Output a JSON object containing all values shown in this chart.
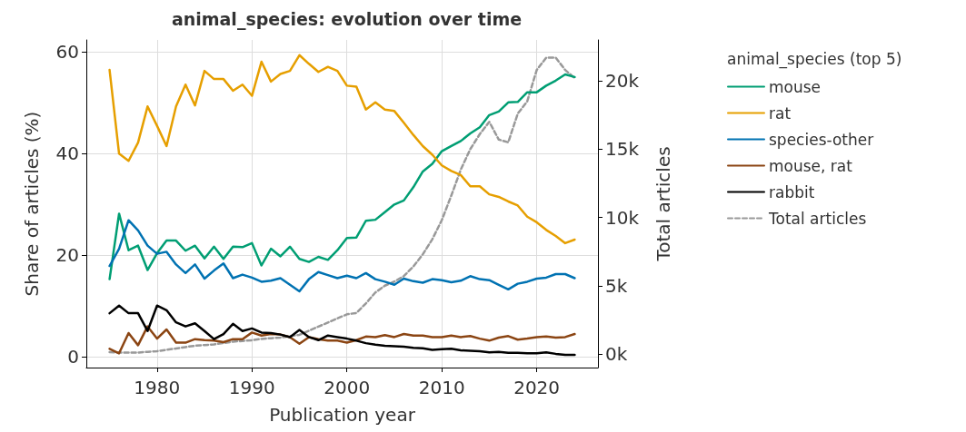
{
  "chart_data": {
    "type": "line",
    "title": "animal_species: evolution over time",
    "xlabel": "Publication year",
    "ylabel": "Share of articles (%)",
    "y2label": "Total articles",
    "legend_title": "animal_species (top 5)",
    "x": [
      1975,
      1976,
      1977,
      1978,
      1979,
      1980,
      1981,
      1982,
      1983,
      1984,
      1985,
      1986,
      1987,
      1988,
      1989,
      1990,
      1991,
      1992,
      1993,
      1994,
      1995,
      1996,
      1997,
      1998,
      1999,
      2000,
      2001,
      2002,
      2003,
      2004,
      2005,
      2006,
      2007,
      2008,
      2009,
      2010,
      2011,
      2012,
      2013,
      2014,
      2015,
      2016,
      2017,
      2018,
      2019,
      2020,
      2021,
      2022,
      2023,
      2024
    ],
    "series": [
      {
        "name": "mouse",
        "color": "#009e73",
        "values": [
          15.3,
          28.2,
          21.0,
          21.9,
          17.1,
          20.4,
          22.9,
          22.9,
          20.9,
          21.9,
          19.4,
          21.7,
          19.3,
          21.7,
          21.6,
          22.4,
          18.0,
          21.3,
          19.8,
          21.7,
          19.3,
          18.7,
          19.7,
          19.1,
          21.0,
          23.4,
          23.5,
          26.8,
          27.0,
          28.5,
          30.0,
          30.8,
          33.4,
          36.5,
          38.0,
          40.5,
          41.5,
          42.5,
          44.0,
          45.2,
          47.6,
          48.3,
          50.1,
          50.2,
          52.1,
          52.1,
          53.4,
          54.4,
          55.6,
          55.1
        ]
      },
      {
        "name": "rat",
        "color": "#e69f00",
        "values": [
          56.5,
          40.0,
          38.6,
          42.2,
          49.3,
          45.5,
          41.5,
          49.3,
          53.6,
          49.5,
          56.3,
          54.7,
          54.7,
          52.4,
          53.6,
          51.4,
          58.1,
          54.2,
          55.7,
          56.3,
          59.4,
          57.7,
          56.1,
          57.1,
          56.3,
          53.4,
          53.2,
          48.7,
          50.1,
          48.7,
          48.4,
          46.1,
          43.7,
          41.5,
          39.8,
          37.7,
          36.6,
          35.8,
          33.6,
          33.6,
          32.0,
          31.5,
          30.6,
          29.8,
          27.6,
          26.5,
          25.0,
          23.8,
          22.4,
          23.1
        ]
      },
      {
        "name": "species-other",
        "color": "#0072b2",
        "values": [
          17.9,
          21.3,
          26.9,
          24.9,
          21.9,
          20.3,
          20.7,
          18.2,
          16.5,
          18.2,
          15.4,
          17.0,
          18.4,
          15.5,
          16.2,
          15.6,
          14.8,
          15.0,
          15.5,
          14.2,
          12.9,
          15.3,
          16.7,
          16.1,
          15.5,
          16.0,
          15.5,
          16.5,
          15.3,
          14.8,
          14.2,
          15.4,
          14.9,
          14.6,
          15.3,
          15.1,
          14.7,
          15.0,
          15.9,
          15.3,
          15.1,
          14.2,
          13.3,
          14.4,
          14.8,
          15.4,
          15.6,
          16.3,
          16.3,
          15.5
        ]
      },
      {
        "name": "mouse, rat",
        "color": "#8b4513",
        "values": [
          1.6,
          0.7,
          4.7,
          2.3,
          6.0,
          3.6,
          5.4,
          2.8,
          2.8,
          3.5,
          3.3,
          3.2,
          2.9,
          3.5,
          3.5,
          4.8,
          4.2,
          4.5,
          4.4,
          3.9,
          2.6,
          3.9,
          3.5,
          3.2,
          3.2,
          2.8,
          3.3,
          4.0,
          3.9,
          4.3,
          3.9,
          4.5,
          4.2,
          4.2,
          3.9,
          3.9,
          4.2,
          3.9,
          4.1,
          3.6,
          3.2,
          3.8,
          4.1,
          3.4,
          3.6,
          3.9,
          4.0,
          3.8,
          3.9,
          4.5
        ]
      },
      {
        "name": "rabbit",
        "color": "#000000",
        "values": [
          8.6,
          10.1,
          8.6,
          8.6,
          5.1,
          10.1,
          9.2,
          6.8,
          6.0,
          6.6,
          5.1,
          3.5,
          4.5,
          6.5,
          5.1,
          5.6,
          4.8,
          4.7,
          4.4,
          3.9,
          5.3,
          3.9,
          3.3,
          4.2,
          3.9,
          3.6,
          3.2,
          2.7,
          2.4,
          2.2,
          2.1,
          2.0,
          1.8,
          1.7,
          1.4,
          1.5,
          1.6,
          1.3,
          1.2,
          1.1,
          0.9,
          1.0,
          0.8,
          0.8,
          0.7,
          0.7,
          0.9,
          0.6,
          0.4,
          0.4
        ]
      },
      {
        "name": "Total articles",
        "color": "#999999",
        "axis": "y2",
        "line_style": "dashed",
        "values": [
          130,
          100,
          100,
          100,
          150,
          200,
          300,
          400,
          500,
          600,
          650,
          700,
          800,
          900,
          950,
          1000,
          1100,
          1150,
          1200,
          1300,
          1400,
          1700,
          2000,
          2300,
          2600,
          2900,
          3000,
          3700,
          4500,
          5000,
          5300,
          5700,
          6400,
          7300,
          8400,
          9800,
          11600,
          13500,
          15000,
          16100,
          17000,
          15700,
          15500,
          17600,
          18500,
          20800,
          21700,
          21700,
          20800,
          20200
        ]
      }
    ],
    "xlim": [
      1972.55,
      2026.45
    ],
    "xticks": [
      1980,
      1990,
      2000,
      2010,
      2020
    ],
    "ylim": [
      -2.1,
      62.4
    ],
    "yticks": [
      0,
      20,
      40,
      60
    ],
    "y2lim": [
      -1000,
      23000
    ],
    "y2ticks": [
      {
        "value": 0,
        "label": "0k"
      },
      {
        "value": 5000,
        "label": "5k"
      },
      {
        "value": 10000,
        "label": "10k"
      },
      {
        "value": 15000,
        "label": "15k"
      },
      {
        "value": 20000,
        "label": "20k"
      }
    ],
    "grid": true,
    "legend": "right",
    "line_style": "solid"
  }
}
